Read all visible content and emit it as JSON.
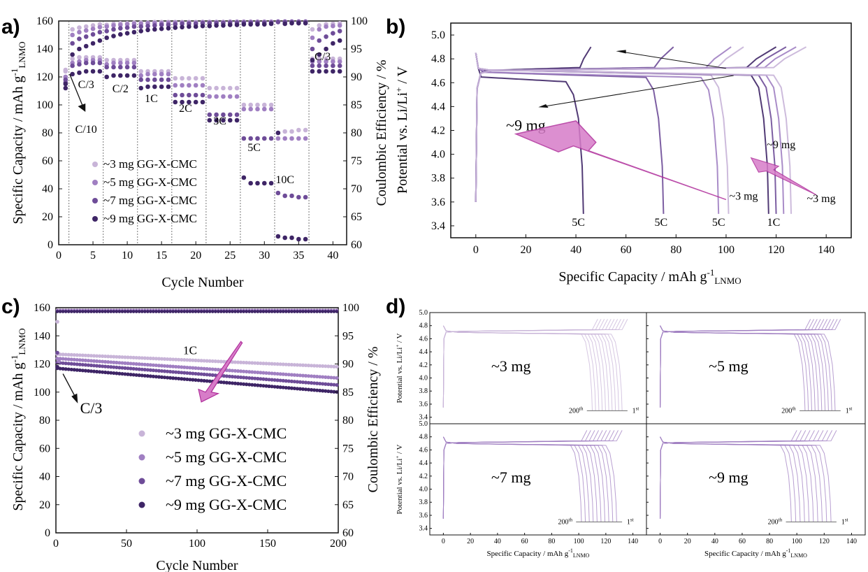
{
  "colors": {
    "mg3": "#c8b4d8",
    "mg5": "#a07fc2",
    "mg7": "#6e4c98",
    "mg9": "#3e2566",
    "arrow_fill": "#d77cc8",
    "arrow_stroke": "#b0309c"
  },
  "chart_data": [
    {
      "panel": "a)",
      "type": "scatter",
      "xlabel": "Cycle Number",
      "ylabel_main": "Specific Capacity / mAh g",
      "ylabel_sup": "-1",
      "ylabel_sub": "LNMO",
      "ylabel2": "Coulombic Efficiency / %",
      "xlim": [
        0,
        42
      ],
      "ylim": [
        0,
        160
      ],
      "y2lim": [
        60,
        100
      ],
      "xticks": [
        "0",
        "5",
        "10",
        "15",
        "20",
        "25",
        "30",
        "35",
        "40"
      ],
      "yticks": [
        "0",
        "20",
        "40",
        "60",
        "80",
        "100",
        "120",
        "140",
        "160"
      ],
      "y2ticks": [
        "60",
        "65",
        "70",
        "75",
        "80",
        "85",
        "90",
        "95",
        "100"
      ],
      "rate_boundaries": [
        1.5,
        6.5,
        11.5,
        16.5,
        21.5,
        26.5,
        31.5,
        36.5
      ],
      "rate_labels": [
        {
          "text": "C/10",
          "x": 4,
          "y": 80
        },
        {
          "text": "C/3",
          "x": 4,
          "y": 112
        },
        {
          "text": "C/2",
          "x": 9,
          "y": 109
        },
        {
          "text": "1C",
          "x": 13.5,
          "y": 102
        },
        {
          "text": "2C",
          "x": 18.5,
          "y": 95
        },
        {
          "text": "3C",
          "x": 23.5,
          "y": 86
        },
        {
          "text": "5C",
          "x": 28.5,
          "y": 67
        },
        {
          "text": "10C",
          "x": 33,
          "y": 44
        },
        {
          "text": "C/3",
          "x": 38.5,
          "y": 132
        }
      ],
      "series": [
        {
          "name": "~3 mg GG-X-CMC",
          "color_key": "mg3",
          "capacity": [
            125,
            133,
            134,
            134,
            134,
            134,
            132,
            132,
            132,
            132,
            132,
            124,
            124,
            124,
            124,
            124,
            119,
            119,
            119,
            119,
            119,
            112,
            112,
            112,
            112,
            112,
            100,
            100,
            100,
            100,
            100,
            80,
            81,
            81,
            82,
            82,
            133,
            133,
            133,
            133,
            133,
            133
          ],
          "ce": [
            91,
            98.5,
            98.8,
            99,
            99.2,
            99.4,
            99.3,
            99.5,
            99.6,
            99.6,
            99.7,
            99.7,
            99.7,
            99.8,
            99.8,
            99.8,
            99.8,
            99.8,
            99.8,
            99.8,
            99.8,
            99.8,
            99.8,
            99.8,
            99.9,
            99.9,
            99.9,
            99.9,
            99.9,
            99.9,
            99.9,
            99.9,
            99.9,
            99.9,
            99.9,
            99.9,
            98.5,
            99.2,
            99.4,
            99.5,
            99.6,
            99.6
          ]
        },
        {
          "name": "~5 mg GG-X-CMC",
          "color_key": "mg5",
          "capacity": [
            120,
            130,
            131,
            132,
            132,
            132,
            129,
            130,
            130,
            130,
            130,
            121,
            122,
            122,
            122,
            122,
            114,
            114,
            114,
            114,
            114,
            106,
            106,
            106,
            106,
            106,
            97,
            97,
            97,
            97,
            97,
            76,
            76,
            76,
            76,
            76,
            131,
            131,
            131,
            131,
            131,
            131
          ],
          "ce": [
            90,
            97.5,
            98,
            98.3,
            98.6,
            98.9,
            99,
            99.2,
            99.3,
            99.4,
            99.5,
            99.5,
            99.6,
            99.6,
            99.6,
            99.7,
            99.7,
            99.7,
            99.7,
            99.7,
            99.8,
            99.8,
            99.8,
            99.8,
            99.8,
            99.8,
            99.8,
            99.8,
            99.8,
            99.8,
            99.8,
            99.9,
            99.9,
            99.9,
            99.9,
            99.9,
            97,
            98.5,
            99,
            99.1,
            99.2,
            99.3
          ]
        },
        {
          "name": "~7 mg GG-X-CMC",
          "color_key": "mg7",
          "capacity": [
            118,
            128,
            129,
            130,
            130,
            130,
            127,
            127,
            127,
            127,
            127,
            118,
            118,
            118,
            118,
            118,
            107,
            107,
            107,
            107,
            107,
            93,
            93,
            93,
            93,
            93,
            76,
            76,
            76,
            76,
            76,
            37,
            35,
            35,
            34,
            34,
            128,
            128,
            128,
            128,
            128,
            128
          ],
          "ce": [
            89,
            96,
            96.8,
            97.2,
            97.6,
            98,
            98.2,
            98.5,
            98.7,
            98.8,
            99,
            99,
            99.1,
            99.2,
            99.3,
            99.3,
            99.4,
            99.5,
            99.5,
            99.5,
            99.6,
            99.6,
            99.6,
            99.6,
            99.7,
            99.7,
            99.7,
            99.7,
            99.7,
            99.7,
            99.7,
            99.8,
            99.8,
            99.8,
            99.8,
            99.8,
            95,
            96.5,
            97.2,
            97.8,
            98.2,
            98.5
          ]
        },
        {
          "name": "~9 mg GG-X-CMC",
          "color_key": "mg9",
          "capacity": [
            115,
            122,
            123,
            124,
            124,
            124,
            120,
            121,
            121,
            121,
            121,
            112,
            113,
            113,
            113,
            113,
            102,
            102,
            102,
            102,
            102,
            89,
            89,
            89,
            89,
            89,
            48,
            44,
            44,
            44,
            44,
            6,
            5,
            5,
            4,
            4,
            124,
            124,
            124,
            124,
            124,
            124
          ],
          "ce": [
            88,
            94,
            95,
            95.5,
            96,
            96.5,
            97,
            97.3,
            97.6,
            97.8,
            98,
            98.2,
            98.4,
            98.5,
            98.6,
            98.7,
            98.8,
            98.9,
            99,
            99,
            99.1,
            99.1,
            99.2,
            99.2,
            99.3,
            99.3,
            99.4,
            99.4,
            99.4,
            99.4,
            99.5,
            80,
            99.5,
            99.6,
            99.6,
            99.6,
            93,
            94,
            95,
            96,
            96.5,
            97
          ]
        }
      ]
    },
    {
      "panel": "b)",
      "type": "line",
      "xlabel_main": "Specific Capacity / mAh g",
      "xlabel_sup": "-1",
      "xlabel_sub": "LNMO",
      "ylabel": "Potential vs. Li/Li",
      "ylabel_sup": "+",
      "ylabel_tail": " / V",
      "xlim": [
        -10,
        150
      ],
      "ylim": [
        3.3,
        5.1
      ],
      "xticks": [
        "0",
        "20",
        "40",
        "60",
        "80",
        "100",
        "120",
        "140"
      ],
      "yticks": [
        "3.4",
        "3.6",
        "3.8",
        "4.0",
        "4.2",
        "4.4",
        "4.6",
        "4.8",
        "5.0"
      ],
      "series": [
        {
          "color_key": "mg9",
          "discharge_capacity": 43,
          "rate": "5C"
        },
        {
          "color_key": "mg7",
          "discharge_capacity": 75,
          "rate": "5C"
        },
        {
          "color_key": "mg5",
          "discharge_capacity": 97,
          "rate": "5C"
        },
        {
          "color_key": "mg3",
          "discharge_capacity": 101,
          "rate": "5C"
        },
        {
          "color_key": "mg9",
          "discharge_capacity": 117,
          "rate": "1C"
        },
        {
          "color_key": "mg7",
          "discharge_capacity": 120,
          "rate": "1C"
        },
        {
          "color_key": "mg5",
          "discharge_capacity": 123,
          "rate": "1C"
        },
        {
          "color_key": "mg3",
          "discharge_capacity": 126,
          "rate": "1C"
        }
      ],
      "annotations": [
        {
          "text": "5C",
          "x": 41,
          "y": 3.4
        },
        {
          "text": "5C",
          "x": 74,
          "y": 3.4
        },
        {
          "text": "5C",
          "x": 97,
          "y": 3.4
        },
        {
          "text": "1C",
          "x": 119,
          "y": 3.4
        },
        {
          "text": "~9 mg",
          "x": 122,
          "y": 4.05
        },
        {
          "text": "~3 mg",
          "x": 107,
          "y": 3.62
        },
        {
          "text": "~3 mg",
          "x": 138,
          "y": 3.6
        },
        {
          "text": "~9 mg",
          "x": 20,
          "y": 4.2
        }
      ]
    },
    {
      "panel": "c)",
      "type": "scatter",
      "xlabel": "Cycle Number",
      "ylabel_main": "Specific Capacity / mAh g",
      "ylabel_sup": "-1",
      "ylabel_sub": "LNMO",
      "ylabel2": "Coulombic Efficiency / %",
      "xlim": [
        0,
        200
      ],
      "ylim": [
        0,
        160
      ],
      "y2lim": [
        60,
        100
      ],
      "xticks": [
        "0",
        "50",
        "100",
        "150",
        "200"
      ],
      "yticks": [
        "0",
        "20",
        "40",
        "60",
        "80",
        "100",
        "120",
        "140",
        "160"
      ],
      "y2ticks": [
        "60",
        "65",
        "70",
        "75",
        "80",
        "85",
        "90",
        "95",
        "100"
      ],
      "rate_labels": [
        {
          "text": "1C",
          "x": 95,
          "y": 127
        },
        {
          "text": "C/3",
          "x": 25,
          "y": 85
        }
      ],
      "series": [
        {
          "name": "~3 mg GG-X-CMC",
          "color_key": "mg3",
          "capacity_start": 127,
          "capacity_end": 118,
          "ce": 99.6
        },
        {
          "name": "~5 mg GG-X-CMC",
          "color_key": "mg5",
          "capacity_start": 124,
          "capacity_end": 110,
          "ce": 99.5
        },
        {
          "name": "~7 mg GG-X-CMC",
          "color_key": "mg7",
          "capacity_start": 121,
          "capacity_end": 105,
          "ce": 99.4
        },
        {
          "name": "~9 mg GG-X-CMC",
          "color_key": "mg9",
          "capacity_start": 117,
          "capacity_end": 100,
          "ce": 99.3
        }
      ]
    },
    {
      "panel": "d)",
      "type": "line",
      "xlabel_main": "Specific Capacity / mAh g",
      "xlabel_sup": "-1",
      "xlabel_sub": "LNMO",
      "ylabel": "Potential vs. Li/Li",
      "ylabel_sup": "+",
      "ylabel_tail": " / V",
      "xlim": [
        -10,
        150
      ],
      "ylim": [
        3.3,
        5.0
      ],
      "xticks": [
        "0",
        "20",
        "40",
        "60",
        "80",
        "100",
        "120",
        "140"
      ],
      "yticks": [
        "3.4",
        "3.6",
        "3.8",
        "4.0",
        "4.2",
        "4.4",
        "4.6",
        "4.8",
        "5.0"
      ],
      "cycle_first": "1",
      "cycle_first_sup": "st",
      "cycle_last": "200",
      "cycle_last_sup": "th",
      "subpanels": [
        {
          "label": "~3 mg",
          "cap_first": 132,
          "cap_last": 110,
          "color_key": "mg3"
        },
        {
          "label": "~5 mg",
          "cap_first": 128,
          "cap_last": 106,
          "color_key": "mg5"
        },
        {
          "label": "~7 mg",
          "cap_first": 128,
          "cap_last": 102,
          "color_key": "mg5"
        },
        {
          "label": "~9 mg",
          "cap_first": 125,
          "cap_last": 96,
          "color_key": "mg5"
        }
      ]
    }
  ]
}
